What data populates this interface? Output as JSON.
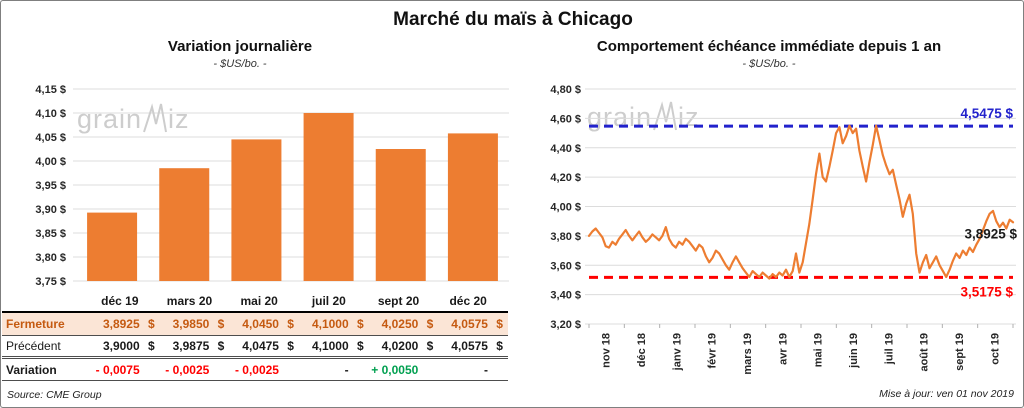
{
  "title": "Marché du maïs à Chicago",
  "watermark": {
    "part1": "grain",
    "part2": "iz"
  },
  "chart_data": [
    {
      "type": "bar",
      "title": "Variation journalière",
      "subtitle": "- $US/bo. -",
      "categories": [
        "déc 19",
        "mars 20",
        "mai 20",
        "juil 20",
        "sept 20",
        "déc 20"
      ],
      "values": [
        3.8925,
        3.985,
        4.045,
        4.1,
        4.025,
        4.0575
      ],
      "ylim": [
        3.75,
        4.15
      ],
      "ytick_values": [
        4.15,
        4.1,
        4.05,
        4.0,
        3.95,
        3.9,
        3.85,
        3.8,
        3.75
      ],
      "ytick_labels": [
        "4,15 $",
        "4,10 $",
        "4,05 $",
        "4,00 $",
        "3,95 $",
        "3,90 $",
        "3,85 $",
        "3,80 $",
        "3,75 $"
      ],
      "bar_color": "#ED7D31",
      "grid": true,
      "legend": "none"
    },
    {
      "type": "line",
      "title": "Comportement échéance immédiate depuis 1 an",
      "subtitle": "- $US/bo. -",
      "x_labels": [
        "nov 18",
        "déc 18",
        "janv 19",
        "févr 19",
        "mars 19",
        "avr 19",
        "mai 19",
        "juin 19",
        "juil 19",
        "août 19",
        "sept 19",
        "oct 19"
      ],
      "ylim": [
        3.2,
        4.8
      ],
      "ytick_values": [
        4.8,
        4.6,
        4.4,
        4.2,
        4.0,
        3.8,
        3.6,
        3.4,
        3.2
      ],
      "ytick_labels": [
        "4,80 $",
        "4,60 $",
        "4,40 $",
        "4,20 $",
        "4,00 $",
        "3,80 $",
        "3,60 $",
        "3,40 $",
        "3,20 $"
      ],
      "line_color": "#ED7D31",
      "grid": true,
      "ref_lines": [
        {
          "name": "high",
          "value": 4.5475,
          "label": "4,5475 $",
          "color": "#2222CC",
          "style": "dashed",
          "label_pos": "above"
        },
        {
          "name": "low",
          "value": 3.5175,
          "label": "3,5175 $",
          "color": "#FF0000",
          "style": "dashed",
          "label_pos": "below"
        }
      ],
      "price_label": {
        "value": 3.8925,
        "label": "3,8925 $",
        "color": "#1A1A1A"
      },
      "values": [
        3.8,
        3.83,
        3.85,
        3.82,
        3.79,
        3.73,
        3.72,
        3.76,
        3.74,
        3.78,
        3.81,
        3.84,
        3.8,
        3.77,
        3.8,
        3.83,
        3.79,
        3.76,
        3.78,
        3.81,
        3.79,
        3.77,
        3.8,
        3.86,
        3.78,
        3.74,
        3.72,
        3.76,
        3.74,
        3.78,
        3.76,
        3.73,
        3.7,
        3.74,
        3.72,
        3.66,
        3.62,
        3.65,
        3.7,
        3.68,
        3.64,
        3.6,
        3.57,
        3.62,
        3.66,
        3.62,
        3.58,
        3.55,
        3.52,
        3.56,
        3.54,
        3.52,
        3.55,
        3.53,
        3.51,
        3.54,
        3.52,
        3.55,
        3.53,
        3.57,
        3.52,
        3.56,
        3.68,
        3.55,
        3.62,
        3.75,
        3.88,
        4.05,
        4.22,
        4.36,
        4.2,
        4.17,
        4.27,
        4.38,
        4.5,
        4.54,
        4.43,
        4.48,
        4.55,
        4.5,
        4.53,
        4.38,
        4.27,
        4.17,
        4.3,
        4.42,
        4.55,
        4.45,
        4.35,
        4.28,
        4.22,
        4.25,
        4.15,
        4.05,
        3.93,
        4.02,
        4.08,
        3.95,
        3.68,
        3.55,
        3.62,
        3.67,
        3.58,
        3.62,
        3.66,
        3.6,
        3.56,
        3.52,
        3.57,
        3.63,
        3.68,
        3.65,
        3.7,
        3.67,
        3.72,
        3.69,
        3.74,
        3.78,
        3.84,
        3.9,
        3.95,
        3.97,
        3.9,
        3.86,
        3.89,
        3.85,
        3.91,
        3.8925
      ]
    }
  ],
  "table": {
    "columns": [
      "déc 19",
      "mars 20",
      "mai 20",
      "juil 20",
      "sept 20",
      "déc 20"
    ],
    "rows": [
      {
        "key": "fermeture",
        "label": "Fermeture",
        "unit": "$",
        "values": [
          "3,8925",
          "3,9850",
          "4,0450",
          "4,1000",
          "4,0250",
          "4,0575"
        ]
      },
      {
        "key": "precedent",
        "label": "Précédent",
        "unit": "$",
        "values": [
          "3,9000",
          "3,9875",
          "4,0475",
          "4,1000",
          "4,0200",
          "4,0575"
        ]
      },
      {
        "key": "variation",
        "label": "Variation",
        "unit": "",
        "values": [
          "- 0,0075",
          "- 0,0025",
          "- 0,0025",
          "-",
          "+ 0,0050",
          "-"
        ],
        "colors": [
          "#FF0000",
          "#FF0000",
          "#FF0000",
          "#1A1A1A",
          "#00A050",
          "#1A1A1A"
        ]
      }
    ]
  },
  "footers": {
    "source": "Source: CME Group",
    "updated": "Mise à jour: ven 01 nov 2019"
  },
  "colors": {
    "accent_orange": "#ED7D31",
    "highlight_bg": "#FBE5D6",
    "highlight_text": "#C55A11",
    "ref_high": "#2222CC",
    "ref_low": "#FF0000",
    "positive": "#00A050",
    "negative": "#FF0000",
    "gridline": "#DCDCDC"
  }
}
